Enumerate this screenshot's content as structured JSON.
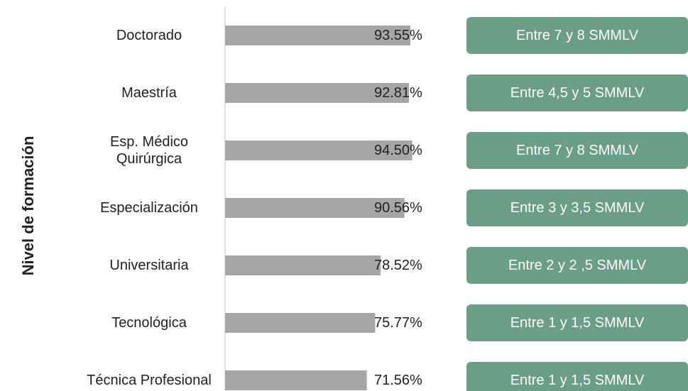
{
  "chart_data": {
    "type": "bar",
    "orientation": "horizontal",
    "y_label": "Nivel de formación",
    "categories": [
      "Doctorado",
      "Maestría",
      "Esp. Médico\nQuirúrgica",
      "Especialización",
      "Universitaria",
      "Tecnológica",
      "Técnica Profesional"
    ],
    "values": [
      93.55,
      92.81,
      94.5,
      90.56,
      78.52,
      75.77,
      71.56
    ],
    "value_labels": [
      "93.55%",
      "92.81%",
      "94.50%",
      "90.56%",
      "78.52%",
      "75.77%",
      "71.56%"
    ],
    "color": "#a6a6a6",
    "xlim": [
      0,
      100
    ],
    "annotations": [
      "Entre 7 y 8 SMMLV",
      "Entre 4,5 y 5 SMMLV",
      "Entre 7 y 8 SMMLV",
      "Entre 3 y 3,5 SMMLV",
      "Entre 2 y 2 ,5 SMMLV",
      "Entre 1 y 1,5 SMMLV",
      "Entre 1 y 1,5 SMMLV"
    ],
    "annotation_color": "#6b9e87"
  }
}
